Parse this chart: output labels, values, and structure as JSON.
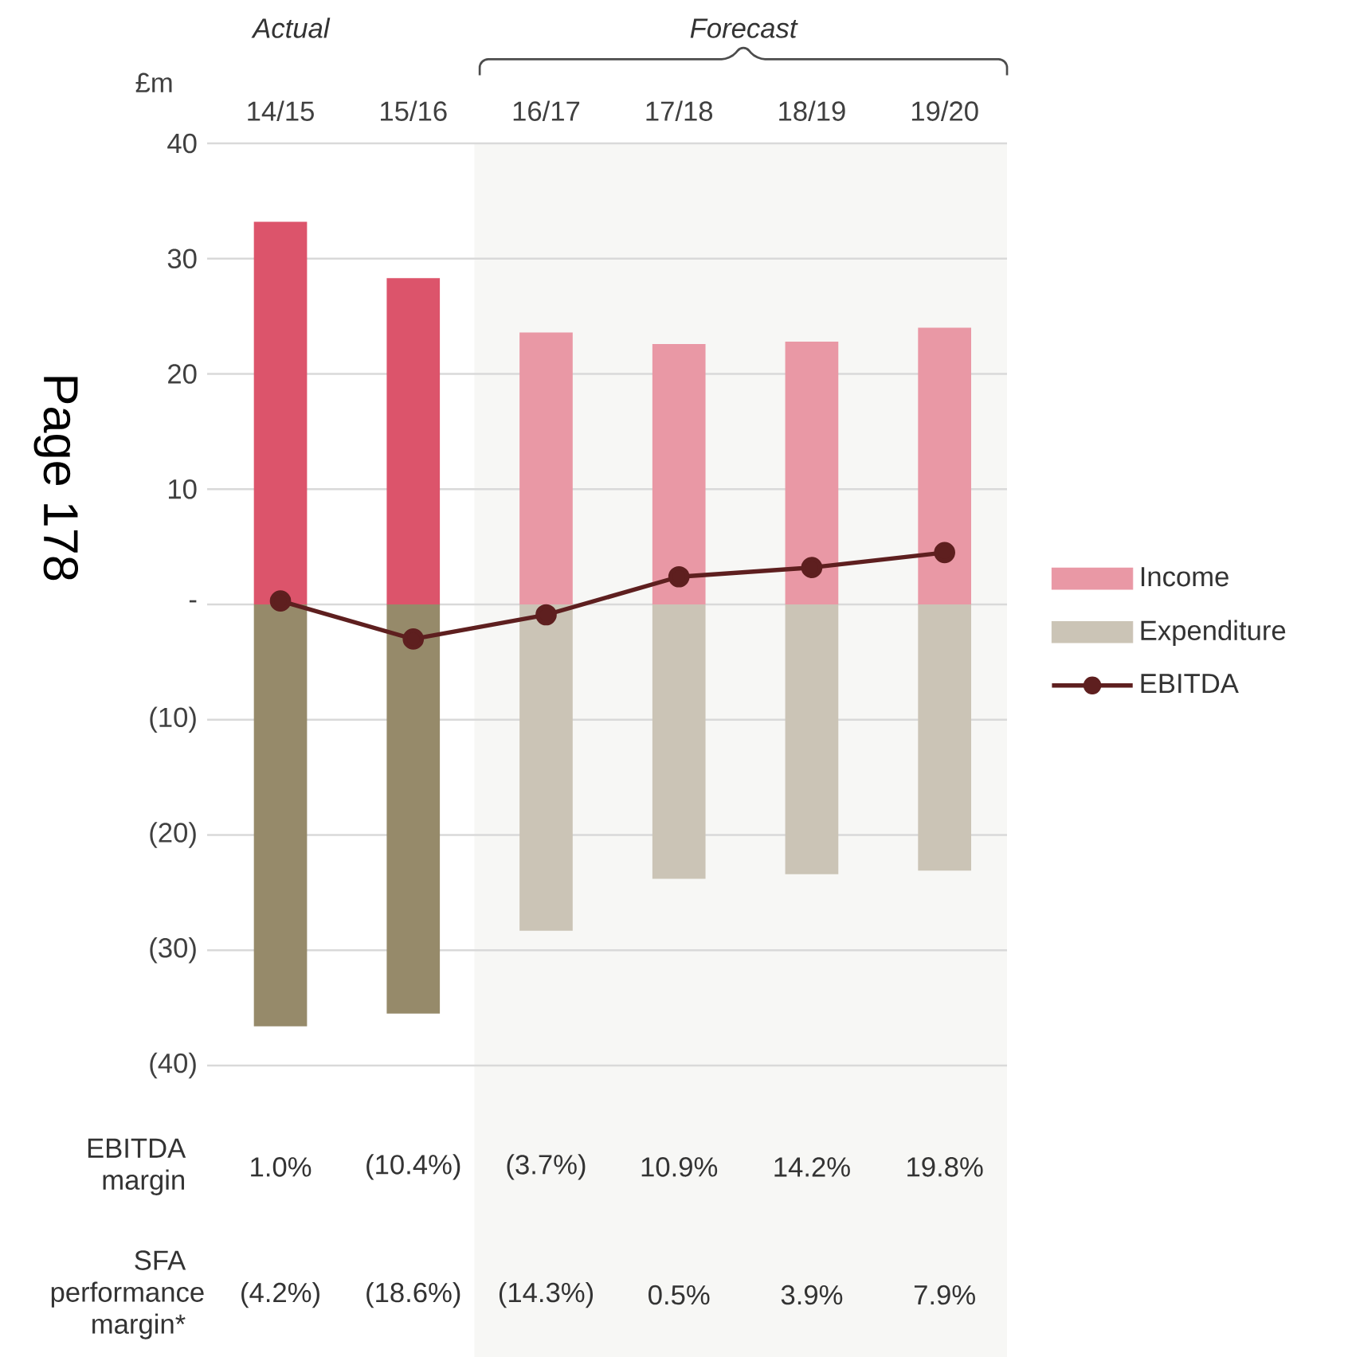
{
  "chart_data": {
    "type": "bar",
    "ylabel": "£m",
    "stacked": true,
    "categories": [
      "14/15",
      "15/16",
      "16/17",
      "17/18",
      "18/19",
      "19/20"
    ],
    "series": [
      {
        "name": "Income",
        "values": [
          33.2,
          28.3,
          23.6,
          22.6,
          22.8,
          24.0
        ],
        "colors": [
          "#dc546b",
          "#dc546b",
          "#e998a5",
          "#e998a5",
          "#e998a5",
          "#e998a5"
        ]
      },
      {
        "name": "Expenditure",
        "values": [
          -36.6,
          -35.5,
          -28.3,
          -23.8,
          -23.4,
          -23.1
        ],
        "colors": [
          "#968a6a",
          "#968a6a",
          "#cbc4b6",
          "#cbc4b6",
          "#cbc4b6",
          "#cbc4b6"
        ]
      },
      {
        "name": "EBITDA",
        "type": "line",
        "marker": "circle",
        "color": "#5e1f1f",
        "values": [
          0.3,
          -3.0,
          -0.9,
          2.4,
          3.2,
          4.5
        ]
      }
    ],
    "ylim": [
      -40,
      40
    ],
    "yticks": [
      {
        "value": 40,
        "label": "40"
      },
      {
        "value": 30,
        "label": "30"
      },
      {
        "value": 20,
        "label": "20"
      },
      {
        "value": 10,
        "label": "10"
      },
      {
        "value": 0,
        "label": "-"
      },
      {
        "value": -10,
        "label": "(10)"
      },
      {
        "value": -20,
        "label": "(20)"
      },
      {
        "value": -30,
        "label": "(30)"
      },
      {
        "value": -40,
        "label": "(40)"
      }
    ],
    "grid": "y",
    "legend": "right",
    "bands": [
      {
        "axis": "x",
        "from": "16/17",
        "to": "19/20",
        "color": "#f7f7f5"
      }
    ],
    "annotations": [
      "Page 178",
      "Actual",
      "Forecast",
      "EBITDA margin",
      "1.0%",
      "(10.4%)",
      "(3.7%)",
      "10.9%",
      "14.2%",
      "19.8%",
      "SFA performance margin*",
      "(4.2%)",
      "(18.6%)",
      "(14.3%)",
      "0.5%",
      "3.9%",
      "7.9%"
    ]
  }
}
